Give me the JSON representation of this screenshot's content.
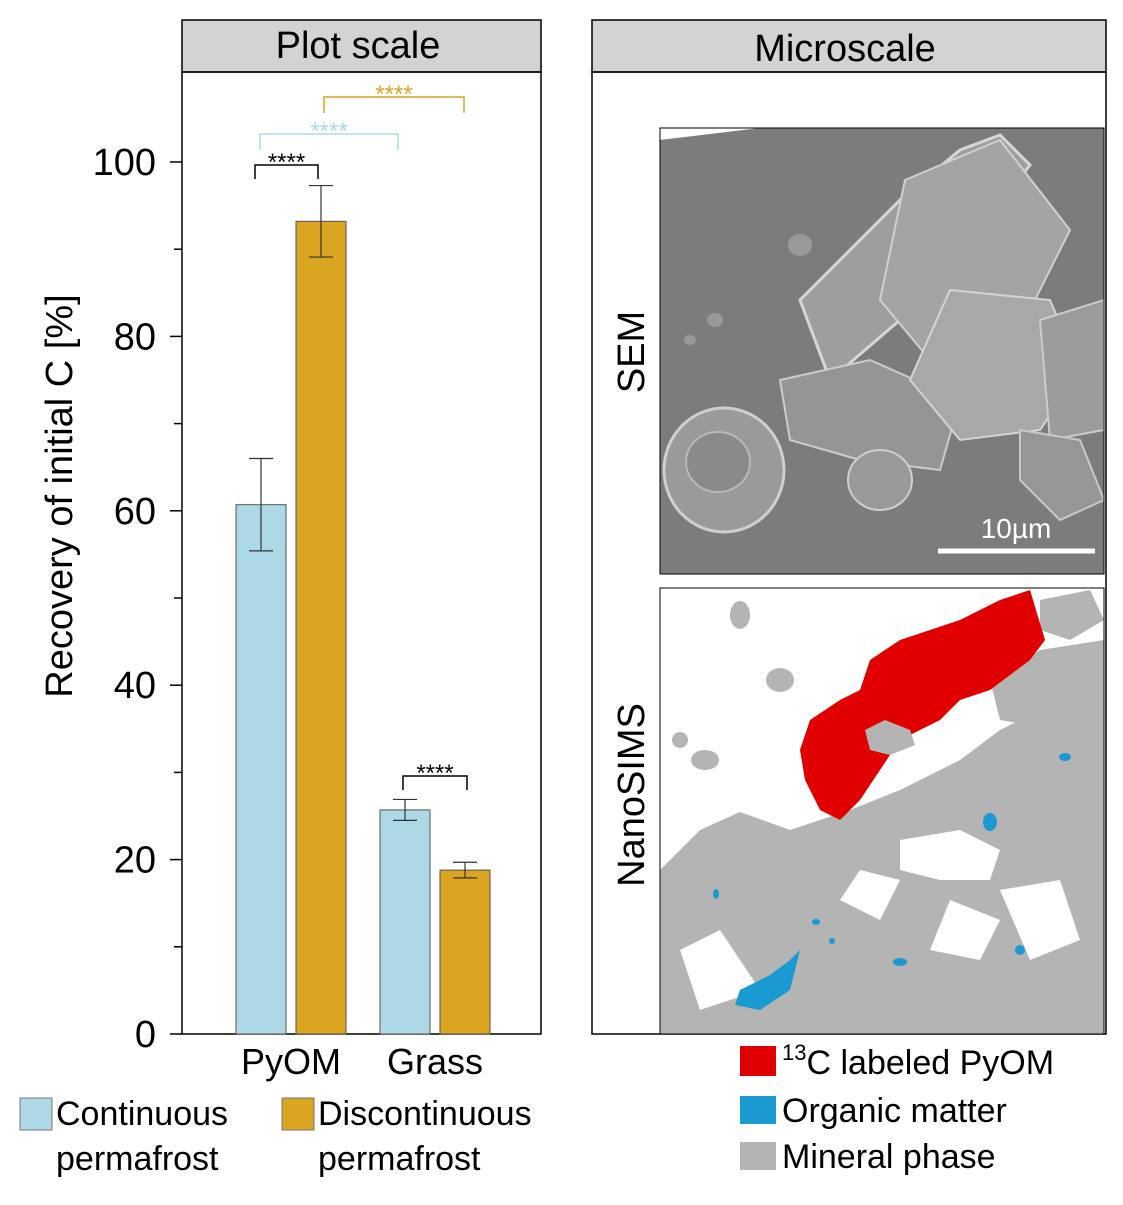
{
  "left_panel": {
    "title": "Plot scale"
  },
  "right_panel": {
    "title": "Microscale",
    "sem_label": "SEM",
    "nanosims_label": "NanoSIMS",
    "scale_bar_label": "10µm"
  },
  "chart_data": {
    "type": "bar",
    "ylabel": "Recovery of initial C [%]",
    "ylim": [
      0,
      110
    ],
    "yticks": [
      0,
      20,
      40,
      60,
      80,
      100
    ],
    "categories": [
      "PyOM",
      "Grass"
    ],
    "series": [
      {
        "name": "Continuous permafrost",
        "color": "#add8e6",
        "values": [
          60.7,
          25.7
        ],
        "errors": [
          5.3,
          1.2
        ]
      },
      {
        "name": "Discontinuous permafrost",
        "color": "#daa520",
        "values": [
          93.2,
          18.8
        ],
        "errors": [
          4.1,
          0.9
        ]
      }
    ],
    "significance": [
      {
        "label": "****",
        "color": "#000000"
      },
      {
        "label": "****",
        "color": "#add8e6"
      },
      {
        "label": "****",
        "color": "#daa520"
      },
      {
        "label": "****",
        "color": "#000000"
      }
    ]
  },
  "legend_left": [
    {
      "line1": "Continuous",
      "line2": "permafrost",
      "color": "#add8e6"
    },
    {
      "line1": "Discontinuous",
      "line2": "permafrost",
      "color": "#daa520"
    }
  ],
  "legend_right": [
    {
      "superscript": "13",
      "label": "C labeled PyOM",
      "color": "#e00000"
    },
    {
      "label": "Organic matter",
      "color": "#1a9ad0"
    },
    {
      "label": "Mineral phase",
      "color": "#b4b4b4"
    }
  ],
  "colors": {
    "header_bg": "#d3d3d3",
    "pyom_red": "#e00000",
    "organic_blue": "#1a9ad0",
    "mineral_gray": "#b4b4b4",
    "sem_bg": "#7a7a7a"
  }
}
